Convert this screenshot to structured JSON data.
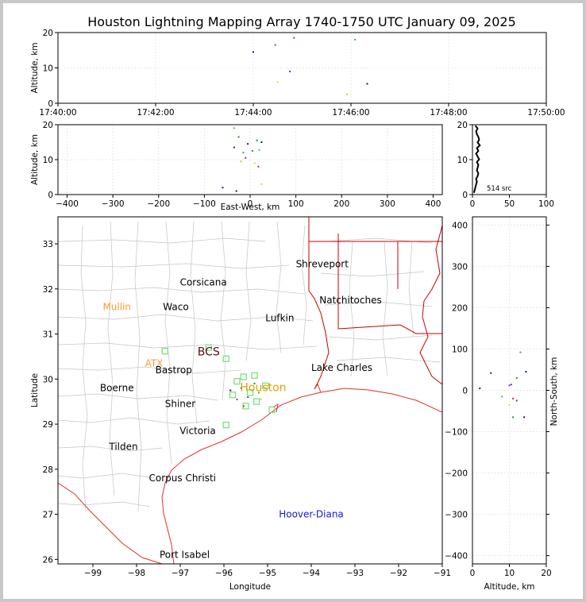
{
  "title": "Houston Lightning Mapping Array 1740-1750 UTC January 09, 2025",
  "chart_data": [
    {
      "type": "scatter",
      "panel": "altitude-vs-time",
      "ylabel": "Altitude, km",
      "xlim": [
        "17:40:00",
        "17:50:00"
      ],
      "ylim": [
        0,
        20
      ],
      "x_ticks": [
        "17:40:00",
        "17:42:00",
        "17:44:00",
        "17:46:00",
        "17:48:00",
        "17:50:00"
      ],
      "y_ticks": [
        "0",
        "10",
        "20"
      ],
      "grid": true,
      "points": [
        {
          "x": "17:44:00",
          "y": 14.5,
          "color": "#1a1a7a"
        },
        {
          "x": "17:44:27",
          "y": 16.5,
          "color": "#2a8a2a"
        },
        {
          "x": "17:44:30",
          "y": 6.0,
          "color": "#c8e04a"
        },
        {
          "x": "17:44:45",
          "y": 9.0,
          "color": "#3050c0"
        },
        {
          "x": "17:44:50",
          "y": 18.5,
          "color": "#a03090"
        },
        {
          "x": "17:45:55",
          "y": 2.5,
          "color": "#e0c020"
        },
        {
          "x": "17:46:05",
          "y": 18.0,
          "color": "#40b040"
        },
        {
          "x": "17:46:20",
          "y": 5.5,
          "color": "#202020"
        }
      ]
    },
    {
      "type": "scatter",
      "panel": "altitude-vs-east-west",
      "xlabel": "East-West, km",
      "ylabel": "Altitude, km",
      "xlim": [
        -420,
        420
      ],
      "ylim": [
        0,
        20
      ],
      "x_ticks": [
        "−400",
        "−300",
        "−200",
        "−100",
        "0",
        "100",
        "200",
        "300",
        "400"
      ],
      "y_ticks": [
        "0",
        "10",
        "20"
      ],
      "grid": true,
      "points": [
        {
          "x": -35,
          "y": 13.5,
          "color": "#1a1a7a"
        },
        {
          "x": -25,
          "y": 16.5,
          "color": "#2a8a2a"
        },
        {
          "x": -15,
          "y": 12.0,
          "color": "#40b040"
        },
        {
          "x": -10,
          "y": 10.5,
          "color": "#3050c0"
        },
        {
          "x": -5,
          "y": 14.5,
          "color": "#202020"
        },
        {
          "x": 5,
          "y": 12.5,
          "color": "#30a030"
        },
        {
          "x": 10,
          "y": 9.0,
          "color": "#c8e04a"
        },
        {
          "x": 15,
          "y": 15.5,
          "color": "#2a8a2a"
        },
        {
          "x": 20,
          "y": 12.8,
          "color": "#40c0a0"
        },
        {
          "x": 25,
          "y": 15.0,
          "color": "#1a1a7a"
        },
        {
          "x": 18,
          "y": 8.0,
          "color": "#c03030"
        },
        {
          "x": -20,
          "y": 9.5,
          "color": "#e0c020"
        },
        {
          "x": -30,
          "y": 1.0,
          "color": "#202020"
        },
        {
          "x": 25,
          "y": 3.0,
          "color": "#c8e04a"
        },
        {
          "x": -60,
          "y": 2.0,
          "color": "#1a1a7a"
        },
        {
          "x": -35,
          "y": 19.0,
          "color": "#50d050"
        }
      ]
    },
    {
      "type": "line",
      "panel": "altitude-histogram",
      "xlim": [
        0,
        100
      ],
      "ylim": [
        0,
        20
      ],
      "x_ticks": [
        "0",
        "50",
        "100"
      ],
      "y_ticks": [
        "0",
        "10",
        "20"
      ],
      "annotation": "514 src",
      "series": [
        {
          "x": [
            2,
            3,
            4,
            5,
            6,
            5,
            7,
            8,
            6,
            7,
            8,
            6,
            9,
            7,
            5,
            8,
            6,
            10,
            7,
            9,
            8,
            6,
            5,
            7,
            4
          ],
          "y": [
            0.5,
            1.3,
            2.1,
            2.9,
            3.7,
            4.5,
            5.3,
            6.1,
            6.9,
            7.7,
            8.5,
            9.3,
            10.1,
            10.9,
            11.7,
            12.5,
            13.3,
            14.1,
            14.9,
            15.7,
            16.5,
            17.3,
            18.1,
            18.9,
            19.7
          ]
        }
      ]
    },
    {
      "type": "scatter",
      "panel": "plan-view-map",
      "xlabel": "Longitude",
      "ylabel": "Latitude",
      "xlim": [
        -99.8,
        -91.0
      ],
      "ylim": [
        25.9,
        33.6
      ],
      "x_ticks": [
        "−99",
        "−98",
        "−97",
        "−96",
        "−95",
        "−94",
        "−93",
        "−92",
        "−91"
      ],
      "y_ticks": [
        "26",
        "27",
        "28",
        "29",
        "30",
        "31",
        "32",
        "33"
      ],
      "cities": [
        {
          "label": "Shreveport",
          "lon": -93.75,
          "lat": 32.55,
          "color": "#000000"
        },
        {
          "label": "Corsicana",
          "lon": -96.47,
          "lat": 32.15,
          "color": "#000000"
        },
        {
          "label": "Natchitoches",
          "lon": -93.1,
          "lat": 31.75,
          "color": "#000000"
        },
        {
          "label": "Mullin",
          "lon": -98.45,
          "lat": 31.6,
          "color": "#ff9933"
        },
        {
          "label": "Waco",
          "lon": -97.1,
          "lat": 31.6,
          "color": "#000000"
        },
        {
          "label": "Lufkin",
          "lon": -94.72,
          "lat": 31.35,
          "color": "#000000"
        },
        {
          "label": "BCS",
          "lon": -96.35,
          "lat": 30.6,
          "color": "#5a0a0a"
        },
        {
          "label": "ATX",
          "lon": -97.6,
          "lat": 30.35,
          "color": "#ff9933"
        },
        {
          "label": "Bastrop",
          "lon": -97.15,
          "lat": 30.2,
          "color": "#000000"
        },
        {
          "label": "Lake Charles",
          "lon": -93.3,
          "lat": 30.25,
          "color": "#000000"
        },
        {
          "label": "Boerne",
          "lon": -98.45,
          "lat": 29.8,
          "color": "#000000"
        },
        {
          "label": "Houston",
          "lon": -95.1,
          "lat": 29.8,
          "color": "#e0a000"
        },
        {
          "label": "Shiner",
          "lon": -97.0,
          "lat": 29.45,
          "color": "#000000"
        },
        {
          "label": "Victoria",
          "lon": -96.6,
          "lat": 28.85,
          "color": "#000000"
        },
        {
          "label": "Tilden",
          "lon": -98.3,
          "lat": 28.5,
          "color": "#000000"
        },
        {
          "label": "Corpus Christi",
          "lon": -96.95,
          "lat": 27.8,
          "color": "#000000"
        },
        {
          "label": "Hoover-Diana",
          "lon": -94.0,
          "lat": 27.0,
          "color": "#1a1acc"
        },
        {
          "label": "Port Isabel",
          "lon": -96.9,
          "lat": 26.1,
          "color": "#000000"
        }
      ],
      "stations": [
        {
          "lon": -97.35,
          "lat": 30.62
        },
        {
          "lon": -96.35,
          "lat": 30.7
        },
        {
          "lon": -95.95,
          "lat": 30.45
        },
        {
          "lon": -95.55,
          "lat": 30.05
        },
        {
          "lon": -95.3,
          "lat": 30.08
        },
        {
          "lon": -95.05,
          "lat": 29.85
        },
        {
          "lon": -95.7,
          "lat": 29.95
        },
        {
          "lon": -95.8,
          "lat": 29.65
        },
        {
          "lon": -95.4,
          "lat": 29.7
        },
        {
          "lon": -95.25,
          "lat": 29.5
        },
        {
          "lon": -95.5,
          "lat": 29.4
        },
        {
          "lon": -94.9,
          "lat": 29.32
        },
        {
          "lon": -95.95,
          "lat": 28.98
        }
      ],
      "points": [
        {
          "lon": -95.6,
          "lat": 29.8,
          "color": "#1a1a7a"
        },
        {
          "lon": -95.45,
          "lat": 29.6,
          "color": "#3050c0"
        },
        {
          "lon": -95.3,
          "lat": 29.9,
          "color": "#2a8a2a"
        },
        {
          "lon": -95.7,
          "lat": 29.55,
          "color": "#a03090"
        },
        {
          "lon": -95.55,
          "lat": 29.4,
          "color": "#c03030"
        },
        {
          "lon": -95.2,
          "lat": 29.7,
          "color": "#40b040"
        },
        {
          "lon": -95.85,
          "lat": 29.75,
          "color": "#202020"
        },
        {
          "lon": -95.15,
          "lat": 29.55,
          "color": "#c8e04a"
        }
      ]
    },
    {
      "type": "scatter",
      "panel": "north-south-vs-altitude",
      "xlabel": "Altitude, km",
      "ylabel": "North-South, km",
      "xlim": [
        0,
        20
      ],
      "ylim": [
        -420,
        420
      ],
      "x_ticks": [
        "0",
        "10",
        "20"
      ],
      "y_ticks": [
        "−400",
        "−300",
        "−200",
        "−100",
        "0",
        "100",
        "200",
        "300",
        "400"
      ],
      "grid": true,
      "points": [
        {
          "x": 5,
          "y": 42,
          "color": "#1a1a7a"
        },
        {
          "x": 10,
          "y": 12,
          "color": "#a03090"
        },
        {
          "x": 10.5,
          "y": 14,
          "color": "#3050c0"
        },
        {
          "x": 12,
          "y": 30,
          "color": "#2a8a2a"
        },
        {
          "x": 13,
          "y": 92,
          "color": "#40b040"
        },
        {
          "x": 14.5,
          "y": 45,
          "color": "#1a1a7a"
        },
        {
          "x": 14,
          "y": -65,
          "color": "#202020"
        },
        {
          "x": 11,
          "y": -20,
          "color": "#c03030"
        },
        {
          "x": 10,
          "y": -35,
          "color": "#c8e04a"
        },
        {
          "x": 8,
          "y": -15,
          "color": "#40c0a0"
        },
        {
          "x": 12,
          "y": -25,
          "color": "#3050c0"
        },
        {
          "x": 11,
          "y": -65,
          "color": "#2a8a2a"
        },
        {
          "x": 2,
          "y": 5,
          "color": "#202020"
        }
      ]
    }
  ]
}
